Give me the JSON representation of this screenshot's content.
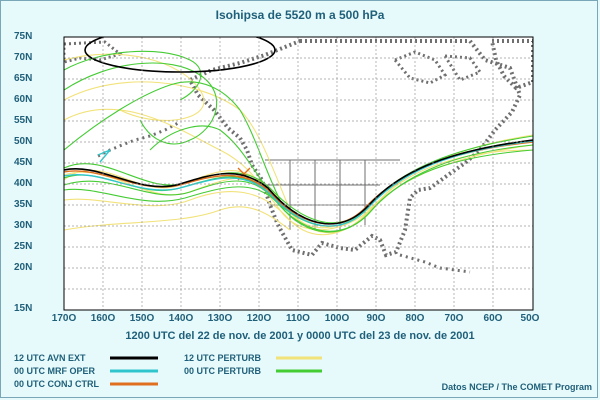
{
  "title": "Isohipsa de 5520 m a 500 hPa",
  "subtitle": "1200 UTC del 22 de nov. de 2001 y 0000 UTC del 23 de nov. de 2001",
  "credit": "Datos NCEP / The COMET Program",
  "lat_ticks": [
    "75N",
    "70N",
    "65N",
    "60N",
    "55N",
    "50N",
    "45N",
    "40N",
    "35N",
    "30N",
    "25N",
    "20N",
    "15N"
  ],
  "lon_ticks": [
    "170O",
    "160O",
    "150O",
    "140O",
    "130O",
    "120O",
    "110O",
    "100O",
    "90O",
    "80O",
    "70O",
    "60O",
    "50O"
  ],
  "legend": [
    {
      "label": "12 UTC AVN EXT",
      "color": "#000000"
    },
    {
      "label": "00 UTC MRF OPER",
      "color": "#2ec6cc"
    },
    {
      "label": "00 UTC CONJ CTRL",
      "color": "#e07020"
    },
    {
      "label": "12 UTC PERTURB",
      "color": "#f2e27a"
    },
    {
      "label": "00 UTC PERTURB",
      "color": "#44cc33"
    }
  ],
  "colors": {
    "background": "#e6fafb",
    "map_bg": "#ffffff",
    "land": "#6f6f6f",
    "grid": "#9a9a9a",
    "text": "#1f5f7a"
  }
}
